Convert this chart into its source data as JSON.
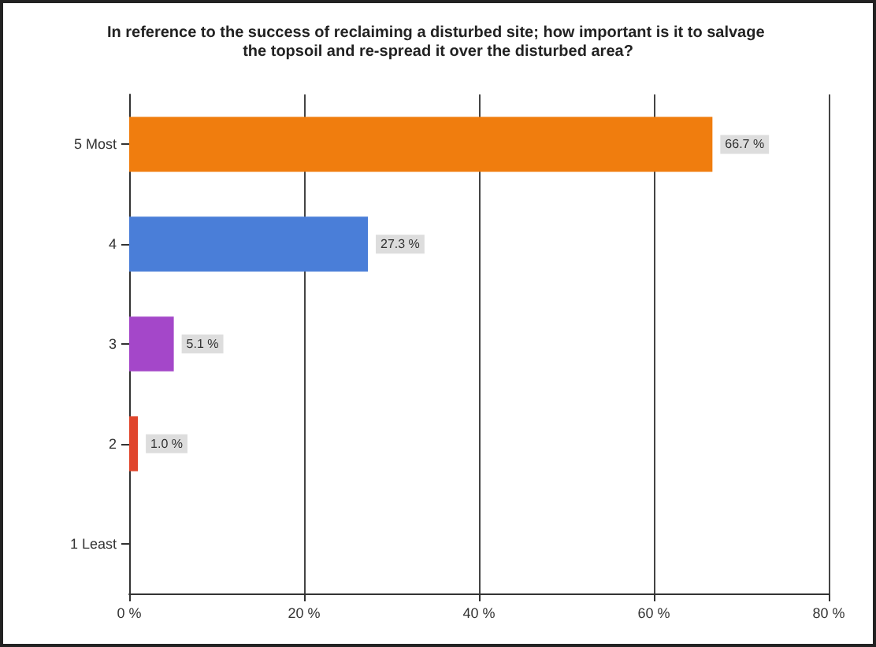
{
  "chart_data": {
    "type": "bar",
    "orientation": "horizontal",
    "title": "In reference to the success of reclaiming a disturbed site; how important is it to salvage the topsoil and re-spread it over the disturbed area?",
    "categories": [
      "5 Most",
      "4",
      "3",
      "2",
      "1 Least"
    ],
    "values": [
      66.7,
      27.3,
      5.1,
      1.0,
      0
    ],
    "colors": [
      "#f07d0e",
      "#4a7ed8",
      "#a447c9",
      "#e0452c",
      "#888888"
    ],
    "value_labels": [
      "66.7 %",
      "27.3 %",
      "5.1 %",
      "1.0 %",
      null
    ],
    "xlim": [
      0,
      80
    ],
    "xticks": [
      {
        "value": 0,
        "label": "0 %"
      },
      {
        "value": 20,
        "label": "20 %"
      },
      {
        "value": 40,
        "label": "40 %"
      },
      {
        "value": 60,
        "label": "60 %"
      },
      {
        "value": 80,
        "label": "80 %"
      }
    ],
    "grid": "x"
  }
}
